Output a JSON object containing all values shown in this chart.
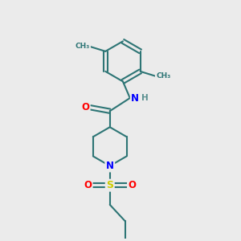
{
  "background_color": "#ebebeb",
  "bond_color": "#2d7575",
  "bond_width": 1.5,
  "atom_colors": {
    "O": "#ff0000",
    "N": "#0000ff",
    "S": "#cccc00",
    "H": "#5a9090",
    "C": "#2d7575"
  },
  "figsize": [
    3.0,
    3.0
  ],
  "dpi": 100
}
